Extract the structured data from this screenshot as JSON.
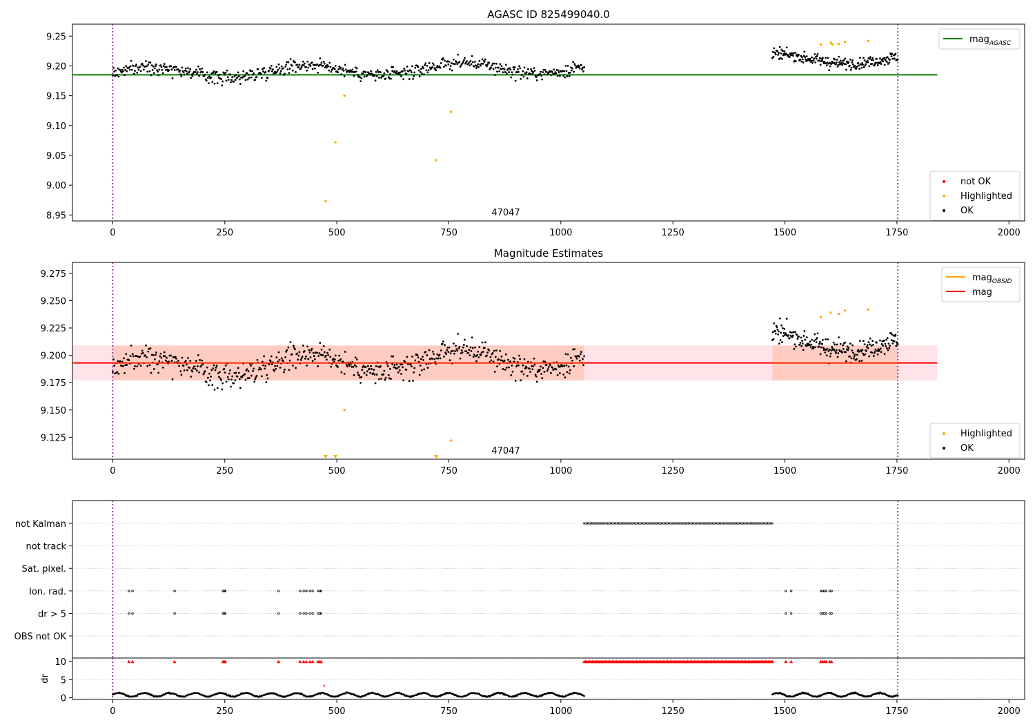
{
  "chart_data": [
    {
      "type": "scatter",
      "title": "AGASC ID 825499040.0",
      "xlim": [
        -90,
        2035
      ],
      "ylim": [
        8.94,
        9.27
      ],
      "xticks": [
        0,
        250,
        500,
        750,
        1000,
        1250,
        1500,
        1750,
        2000
      ],
      "yticks": [
        8.95,
        9.0,
        9.05,
        9.1,
        9.15,
        9.2,
        9.25
      ],
      "ytick_labels": [
        "8.95",
        "9.00",
        "9.05",
        "9.10",
        "9.15",
        "9.20",
        "9.25"
      ],
      "vlines": [
        0,
        1752
      ],
      "hline": {
        "label": "mag",
        "label_sub": "AGASC",
        "y": 9.185,
        "x_range": [
          -90,
          1840
        ],
        "color": "#008000"
      },
      "annotation": {
        "text": "47047",
        "x": 875,
        "y": 8.955
      },
      "legend_top": [
        {
          "label": "mag",
          "label_sub": "AGASC",
          "color": "#008000",
          "kind": "line"
        }
      ],
      "legend_bottom": [
        {
          "label": "not OK",
          "color": "#ff0000",
          "kind": "dot"
        },
        {
          "label": "Highlighted",
          "color": "#ffa500",
          "kind": "dot"
        },
        {
          "label": "OK",
          "color": "#000000",
          "kind": "dot"
        }
      ],
      "ok_segments": [
        {
          "x_range": [
            0,
            1052
          ],
          "base": 9.188,
          "noise": 0.011,
          "count": 640,
          "wave": 0.01,
          "trend": 0.01
        },
        {
          "x_range": [
            1472,
            1752
          ],
          "base": 9.212,
          "noise": 0.009,
          "count": 220,
          "wave": 0.008,
          "trend": 0
        }
      ],
      "highlighted": [
        {
          "x": 475,
          "y": 8.973
        },
        {
          "x": 497,
          "y": 9.072
        },
        {
          "x": 517,
          "y": 9.15
        },
        {
          "x": 722,
          "y": 9.042
        },
        {
          "x": 755,
          "y": 9.123
        },
        {
          "x": 1580,
          "y": 9.236
        },
        {
          "x": 1602,
          "y": 9.239
        },
        {
          "x": 1606,
          "y": 9.236
        },
        {
          "x": 1620,
          "y": 9.237
        },
        {
          "x": 1634,
          "y": 9.24
        },
        {
          "x": 1686,
          "y": 9.242
        }
      ]
    },
    {
      "type": "scatter",
      "title": "Magnitude Estimates",
      "xlim": [
        -90,
        2035
      ],
      "ylim": [
        9.105,
        9.285
      ],
      "xticks": [
        0,
        250,
        500,
        750,
        1000,
        1250,
        1500,
        1750,
        2000
      ],
      "yticks": [
        9.125,
        9.15,
        9.175,
        9.2,
        9.225,
        9.25,
        9.275
      ],
      "ytick_labels": [
        "9.125",
        "9.150",
        "9.175",
        "9.200",
        "9.225",
        "9.250",
        "9.275"
      ],
      "vlines": [
        0,
        1752
      ],
      "mag_line": {
        "label": "mag",
        "y": 9.193,
        "band": [
          9.177,
          9.209
        ],
        "x_range": [
          -90,
          1840
        ],
        "color": "#ff0000"
      },
      "obsid_line": {
        "label": "mag",
        "label_sub": "OBSID",
        "color": "#ffa500"
      },
      "annotation": {
        "text": "47047",
        "x": 875,
        "y": 9.108
      },
      "legend_top": [
        {
          "label": "mag",
          "label_sub": "OBSID",
          "color": "#ffa500",
          "kind": "line"
        },
        {
          "label": "mag",
          "color": "#ff0000",
          "kind": "line"
        }
      ],
      "legend_bottom": [
        {
          "label": "Highlighted",
          "color": "#ffa500",
          "kind": "dot"
        },
        {
          "label": "OK",
          "color": "#000000",
          "kind": "dot"
        }
      ],
      "highlighted": [
        {
          "x": 517,
          "y": 9.15
        },
        {
          "x": 755,
          "y": 9.122
        },
        {
          "x": 1580,
          "y": 9.235
        },
        {
          "x": 1602,
          "y": 9.239
        },
        {
          "x": 1620,
          "y": 9.238
        },
        {
          "x": 1634,
          "y": 9.241
        },
        {
          "x": 1686,
          "y": 9.242
        }
      ],
      "off_scale_markers": [
        475,
        497,
        722
      ]
    },
    {
      "type": "scatter",
      "title": "",
      "xlim": [
        -90,
        2035
      ],
      "xticks": [
        0,
        250,
        500,
        750,
        1000,
        1250,
        1500,
        1750,
        2000
      ],
      "vlines": [
        0,
        1752
      ],
      "flags": [
        {
          "label": "not Kalman",
          "ranges": [
            [
              1052,
              1472
            ]
          ]
        },
        {
          "label": "not track",
          "points": []
        },
        {
          "label": "Sat. pixel.",
          "points": []
        },
        {
          "label": "Ion. rad.",
          "points": [
            36,
            44,
            138,
            246,
            249,
            251,
            370,
            418,
            426,
            432,
            440,
            446,
            458,
            462,
            465,
            1502,
            1514,
            1580,
            1584,
            1588,
            1592,
            1600,
            1604
          ]
        },
        {
          "label": "dr > 5",
          "points": [
            36,
            44,
            138,
            246,
            249,
            251,
            370,
            418,
            426,
            432,
            440,
            446,
            458,
            462,
            465,
            1502,
            1514,
            1580,
            1584,
            1588,
            1592,
            1600,
            1604
          ]
        },
        {
          "label": "OBS not OK",
          "points": []
        }
      ],
      "dr": {
        "ylabel": "dr",
        "ylim": [
          -0.5,
          11
        ],
        "yticks": [
          0,
          5,
          10
        ],
        "clip_value": 10,
        "clipped_points": [
          36,
          44,
          138,
          246,
          249,
          251,
          370,
          418,
          426,
          432,
          440,
          446,
          458,
          462,
          465,
          1502,
          1514,
          1580,
          1584,
          1588,
          1592,
          1600,
          1604
        ],
        "clipped_range": [
          1052,
          1472
        ],
        "outlier": {
          "x": 472,
          "y": 3.3
        },
        "ok_segments": [
          {
            "x_range": [
              0,
              1052
            ],
            "base": 0.8,
            "noise": 0.3,
            "count": 700
          },
          {
            "x_range": [
              1472,
              1752
            ],
            "base": 0.8,
            "noise": 0.3,
            "count": 220
          }
        ]
      }
    }
  ]
}
